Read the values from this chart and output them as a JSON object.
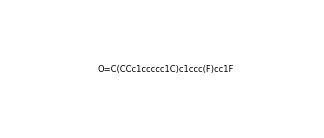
{
  "smiles": "O=C(CCc1ccccc1C)c1ccc(F)cc1F",
  "title": "",
  "figsize": [
    3.24,
    1.38
  ],
  "dpi": 100,
  "bg_color": "#ffffff",
  "img_size": [
    324,
    138
  ]
}
